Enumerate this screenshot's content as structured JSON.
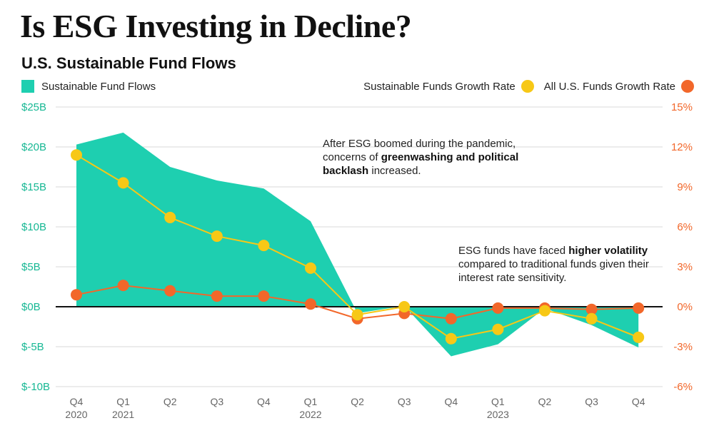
{
  "title": "Is ESG Investing in Decline?",
  "subtitle": "U.S. Sustainable Fund Flows",
  "legend": {
    "area_label": "Sustainable Fund Flows",
    "yellow_label": "Sustainable Funds Growth Rate",
    "orange_label": "All U.S. Funds Growth Rate"
  },
  "annotations": {
    "a1_pre": "After ESG boomed during the pandemic, concerns of ",
    "a1_bold": "greenwashing and political backlash",
    "a1_post": " increased.",
    "a2_pre": "ESG funds have faced ",
    "a2_bold": "higher volatility",
    "a2_post": " compared to traditional funds given their interest rate sensitivity."
  },
  "colors": {
    "area": "#1ecfb0",
    "yellow": "#f7c816",
    "orange": "#f2672a",
    "left_axis": "#17b894",
    "right_axis": "#f2672a",
    "zero_line": "#111111",
    "grid": "#d9d9d9"
  },
  "chart_data": {
    "type": "area+line",
    "title": "U.S. Sustainable Fund Flows",
    "categories": [
      "Q4",
      "Q1",
      "Q2",
      "Q3",
      "Q4",
      "Q1",
      "Q2",
      "Q3",
      "Q4",
      "Q1",
      "Q2",
      "Q3",
      "Q4"
    ],
    "category_years": [
      "2020",
      "2021",
      "",
      "",
      "",
      "2022",
      "",
      "",
      "",
      "2023",
      "",
      "",
      ""
    ],
    "left_axis": {
      "ticks": [
        "$25B",
        "$20B",
        "$15B",
        "$10B",
        "$5B",
        "$0B",
        "$-5B",
        "$-10B"
      ],
      "ylim": [
        -10,
        25
      ]
    },
    "right_axis": {
      "ticks": [
        "15%",
        "12%",
        "9%",
        "6%",
        "3%",
        "0%",
        "-3%",
        "-6%"
      ],
      "ylim": [
        -6,
        15
      ]
    },
    "series": [
      {
        "name": "Sustainable Fund Flows",
        "type": "area",
        "axis": "left",
        "values": [
          20.3,
          21.8,
          17.5,
          15.8,
          14.8,
          10.7,
          -0.8,
          0.1,
          -6.2,
          -4.7,
          -0.2,
          -2.3,
          -5.1
        ]
      },
      {
        "name": "Sustainable Funds Growth Rate",
        "type": "line",
        "axis": "right",
        "values": [
          11.4,
          9.3,
          6.7,
          5.3,
          4.6,
          2.9,
          -0.6,
          0.0,
          -2.4,
          -1.7,
          -0.3,
          -0.9,
          -2.3
        ]
      },
      {
        "name": "All U.S. Funds Growth Rate",
        "type": "line",
        "axis": "right",
        "values": [
          0.9,
          1.6,
          1.2,
          0.8,
          0.8,
          0.2,
          -0.9,
          -0.5,
          -0.9,
          -0.1,
          -0.1,
          -0.2,
          -0.1
        ]
      }
    ]
  }
}
